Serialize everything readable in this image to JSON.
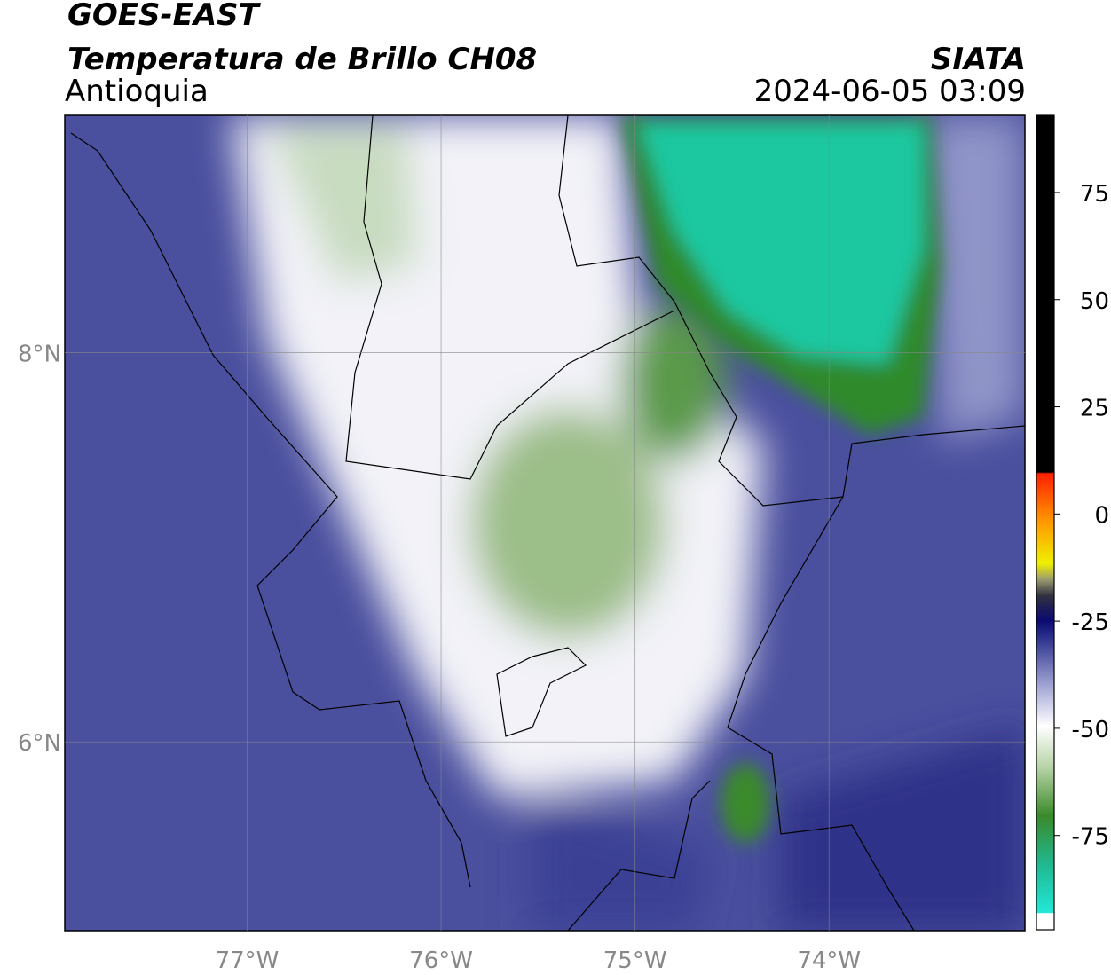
{
  "header": {
    "title": "GOES-EAST",
    "subtitle": "Temperatura de Brillo CH08",
    "region": "Antioquia",
    "source": "SIATA",
    "timestamp": "2024-06-05 03:09"
  },
  "map": {
    "xlim": [
      -77.94,
      -72.99
    ],
    "ylim": [
      5.03,
      9.22
    ],
    "xticks": [
      {
        "value": -77,
        "label": "77°W"
      },
      {
        "value": -76,
        "label": "76°W"
      },
      {
        "value": -75,
        "label": "75°W"
      },
      {
        "value": -74,
        "label": "74°W"
      }
    ],
    "yticks": [
      {
        "value": 8,
        "label": "8°N"
      },
      {
        "value": 6,
        "label": "6°N"
      }
    ],
    "grid": true
  },
  "colorbar": {
    "lim": [
      -97,
      93
    ],
    "ticks": [
      75,
      50,
      25,
      0,
      -25,
      -50,
      -75
    ]
  }
}
